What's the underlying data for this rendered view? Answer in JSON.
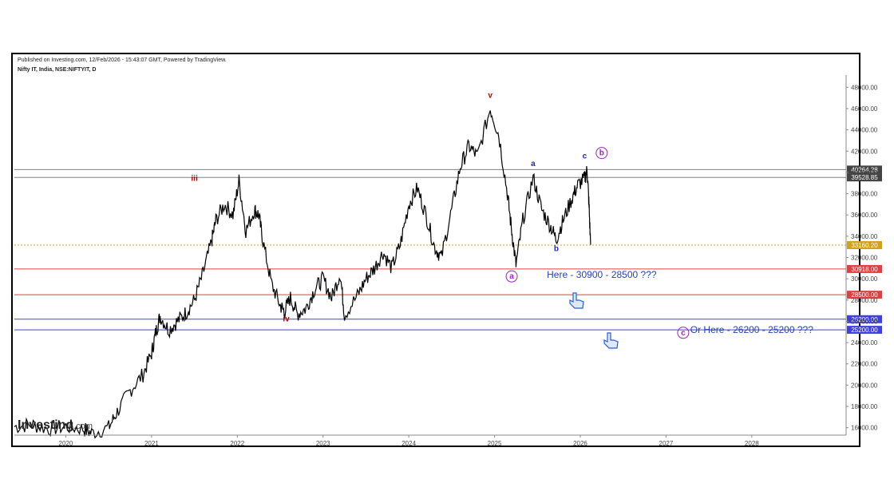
{
  "header": {
    "published": "Published on Investing.com, 12/Feb/2026 - 15:43:07 GMT, Powered by TradingView.",
    "symbol": "Nifty IT, India, NSE:NIFTYIT, D"
  },
  "logo": {
    "main": "Investing",
    "suffix": ".com"
  },
  "colors": {
    "price": "#000000",
    "red_label": "#c00000",
    "blue_label": "#1f1fd0",
    "purple": "#a020c0",
    "horiz_red": "#e04040",
    "horiz_blue": "#4040e0",
    "horiz_gray": "#808080",
    "horiz_orange": "#d4a017",
    "text_blue": "#1f3fd0"
  },
  "chart_data": {
    "type": "line",
    "title": "Nifty IT, India, NSE:NIFTYIT, D",
    "xlabel": "",
    "ylabel": "",
    "xlim": [
      2019.4,
      2029.1
    ],
    "ylim": [
      15300,
      48700
    ],
    "x_ticks": [
      "2020",
      "2021",
      "2022",
      "2023",
      "2024",
      "2025",
      "2026",
      "2027",
      "2028"
    ],
    "y_ticks": [
      "48000.00",
      "46000.00",
      "44000.00",
      "42000.00",
      "40000.00",
      "38000.00",
      "36000.00",
      "34000.00",
      "32000.00",
      "30000.00",
      "28000.00",
      "26000.00",
      "24000.00",
      "22000.00",
      "20000.00",
      "18000.00",
      "16000.00"
    ],
    "series": [
      {
        "points": [
          [
            2019.4,
            16100
          ],
          [
            2019.6,
            16300
          ],
          [
            2019.8,
            15900
          ],
          [
            2020.0,
            16100
          ],
          [
            2020.2,
            15900
          ],
          [
            2020.3,
            15500
          ],
          [
            2020.5,
            16000
          ],
          [
            2020.6,
            17500
          ],
          [
            2020.75,
            19500
          ],
          [
            2020.9,
            21000
          ],
          [
            2021.0,
            23000
          ],
          [
            2021.05,
            25000
          ],
          [
            2021.1,
            26500
          ],
          [
            2021.2,
            25200
          ],
          [
            2021.3,
            26000
          ],
          [
            2021.4,
            26800
          ],
          [
            2021.5,
            28000
          ],
          [
            2021.6,
            30500
          ],
          [
            2021.7,
            33500
          ],
          [
            2021.75,
            35500
          ],
          [
            2021.85,
            37000
          ],
          [
            2021.95,
            36000
          ],
          [
            2022.02,
            39200
          ],
          [
            2022.1,
            34500
          ],
          [
            2022.2,
            36500
          ],
          [
            2022.25,
            36000
          ],
          [
            2022.3,
            33500
          ],
          [
            2022.4,
            29500
          ],
          [
            2022.5,
            27500
          ],
          [
            2022.55,
            26900
          ],
          [
            2022.62,
            28200
          ],
          [
            2022.7,
            26700
          ],
          [
            2022.8,
            27200
          ],
          [
            2022.9,
            29000
          ],
          [
            2023.0,
            30000
          ],
          [
            2023.1,
            28200
          ],
          [
            2023.2,
            30500
          ],
          [
            2023.25,
            26600
          ],
          [
            2023.4,
            28400
          ],
          [
            2023.5,
            30000
          ],
          [
            2023.6,
            31000
          ],
          [
            2023.7,
            32500
          ],
          [
            2023.8,
            31000
          ],
          [
            2023.9,
            33200
          ],
          [
            2024.0,
            37000
          ],
          [
            2024.1,
            38500
          ],
          [
            2024.2,
            36000
          ],
          [
            2024.3,
            33000
          ],
          [
            2024.38,
            32000
          ],
          [
            2024.5,
            36500
          ],
          [
            2024.6,
            40500
          ],
          [
            2024.7,
            42500
          ],
          [
            2024.8,
            41500
          ],
          [
            2024.95,
            46000
          ],
          [
            2025.05,
            43500
          ],
          [
            2025.15,
            38000
          ],
          [
            2025.2,
            34500
          ],
          [
            2025.25,
            31300
          ],
          [
            2025.33,
            35500
          ],
          [
            2025.45,
            39500
          ],
          [
            2025.55,
            36500
          ],
          [
            2025.65,
            35000
          ],
          [
            2025.72,
            33700
          ],
          [
            2025.8,
            35500
          ],
          [
            2025.9,
            37500
          ],
          [
            2025.97,
            38800
          ],
          [
            2026.05,
            39400
          ],
          [
            2026.08,
            40200
          ],
          [
            2026.1,
            37200
          ],
          [
            2026.12,
            33200
          ]
        ]
      }
    ],
    "horizontal_lines": [
      {
        "value": 40264.28,
        "label": "40264.28",
        "color": "gray"
      },
      {
        "value": 39528.85,
        "label": "39528.85",
        "color": "gray"
      },
      {
        "value": 33160.2,
        "label": "33160.20",
        "color": "orange"
      },
      {
        "value": 30918.0,
        "label": "30918.00",
        "color": "red"
      },
      {
        "value": 28500.0,
        "label": "28500.00",
        "color": "red"
      },
      {
        "value": 26200.0,
        "label": "26200.00",
        "color": "blue"
      },
      {
        "value": 25200.0,
        "label": "25200.00",
        "color": "blue"
      }
    ],
    "wave_labels": [
      {
        "text": "iii",
        "x": 2021.5,
        "y": 39200,
        "color": "red",
        "circled": false
      },
      {
        "text": "iv",
        "x": 2022.57,
        "y": 26000,
        "color": "red",
        "circled": false
      },
      {
        "text": "v",
        "x": 2024.95,
        "y": 47000,
        "color": "red",
        "circled": false
      },
      {
        "text": "a",
        "x": 2025.2,
        "y": 30000,
        "color": "purple",
        "circled": true
      },
      {
        "text": "a",
        "x": 2025.45,
        "y": 40600,
        "color": "blue",
        "circled": false
      },
      {
        "text": "b",
        "x": 2025.72,
        "y": 32600,
        "color": "blue",
        "circled": false
      },
      {
        "text": "c",
        "x": 2026.05,
        "y": 41300,
        "color": "blue",
        "circled": false
      },
      {
        "text": "b",
        "x": 2026.25,
        "y": 41600,
        "color": "purple",
        "circled": true
      },
      {
        "text": "c",
        "x": 2027.2,
        "y": 24700,
        "color": "purple",
        "circled": true
      }
    ],
    "annotations": [
      {
        "text": "Here - 30900 - 28500 ???",
        "x": 2026.25,
        "y": 30100
      },
      {
        "text": "Or Here - 26200 - 25200 ???",
        "x": 2028.0,
        "y": 24900
      }
    ],
    "grid": false,
    "legend": "none"
  }
}
